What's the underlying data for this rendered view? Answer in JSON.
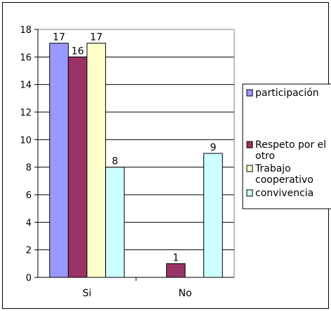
{
  "chart_data": {
    "type": "bar",
    "categories": [
      "Si",
      "No"
    ],
    "series": [
      {
        "name": "participación",
        "color": "#9999ff",
        "values": [
          17,
          null
        ]
      },
      {
        "name": "Respeto por el otro",
        "color": "#993366",
        "values": [
          16,
          1
        ]
      },
      {
        "name": "Trabajo cooperativo",
        "color": "#ffffcc",
        "values": [
          17,
          null
        ]
      },
      {
        "name": "convivencia",
        "color": "#ccffff",
        "values": [
          8,
          9
        ]
      }
    ],
    "ylim": [
      0,
      18
    ],
    "yticks": [
      0,
      2,
      4,
      6,
      8,
      10,
      12,
      14,
      16,
      18
    ],
    "grid": true,
    "legend_position": "right",
    "data_labels": true
  }
}
